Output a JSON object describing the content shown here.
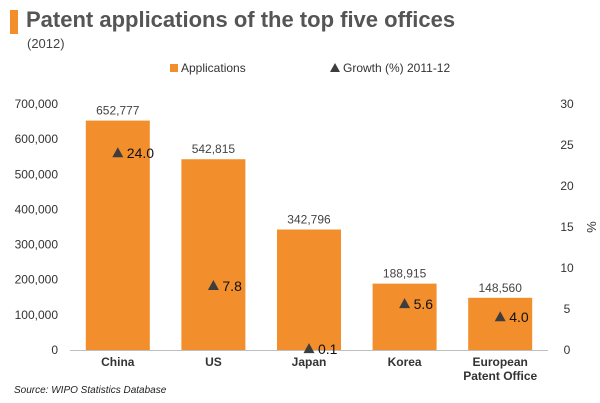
{
  "header": {
    "title": "Patent applications of the top five offices",
    "subtitle": "(2012)"
  },
  "footer": {
    "source": "Source: WIPO Statistics Database"
  },
  "colors": {
    "bar": "#f28e2b",
    "marker": "#3d3d3d",
    "accent": "#f28e2b"
  },
  "chart_data": {
    "type": "bar",
    "categories": [
      "China",
      "US",
      "Japan",
      "Korea",
      "European Patent Office"
    ],
    "category_lines": [
      [
        "China"
      ],
      [
        "US"
      ],
      [
        "Japan"
      ],
      [
        "Korea"
      ],
      [
        "European",
        "Patent Office"
      ]
    ],
    "series": [
      {
        "name": "Applications",
        "type": "bar",
        "axis": "left",
        "values": [
          652777,
          542815,
          342796,
          188915,
          148560
        ],
        "labels": [
          "652,777",
          "542,815",
          "342,796",
          "188,915",
          "148,560"
        ]
      },
      {
        "name": "Growth (%) 2011-12",
        "type": "scatter",
        "marker": "triangle",
        "axis": "right",
        "values": [
          24.0,
          7.8,
          0.1,
          5.6,
          4.0
        ],
        "labels": [
          "24.0",
          "7.8",
          "0.1",
          "5.6",
          "4.0"
        ]
      }
    ],
    "y_left": {
      "ylim": [
        0,
        700000
      ],
      "ticks": [
        0,
        100000,
        200000,
        300000,
        400000,
        500000,
        600000,
        700000
      ],
      "tick_labels": [
        "0",
        "100,000",
        "200,000",
        "300,000",
        "400,000",
        "500,000",
        "600,000",
        "700,000"
      ]
    },
    "y_right": {
      "label": "%",
      "ylim": [
        0,
        30
      ],
      "ticks": [
        0,
        5,
        10,
        15,
        20,
        25,
        30
      ],
      "tick_labels": [
        "0",
        "5",
        "10",
        "15",
        "20",
        "25",
        "30"
      ]
    },
    "legend": "top-center",
    "grid": false
  }
}
